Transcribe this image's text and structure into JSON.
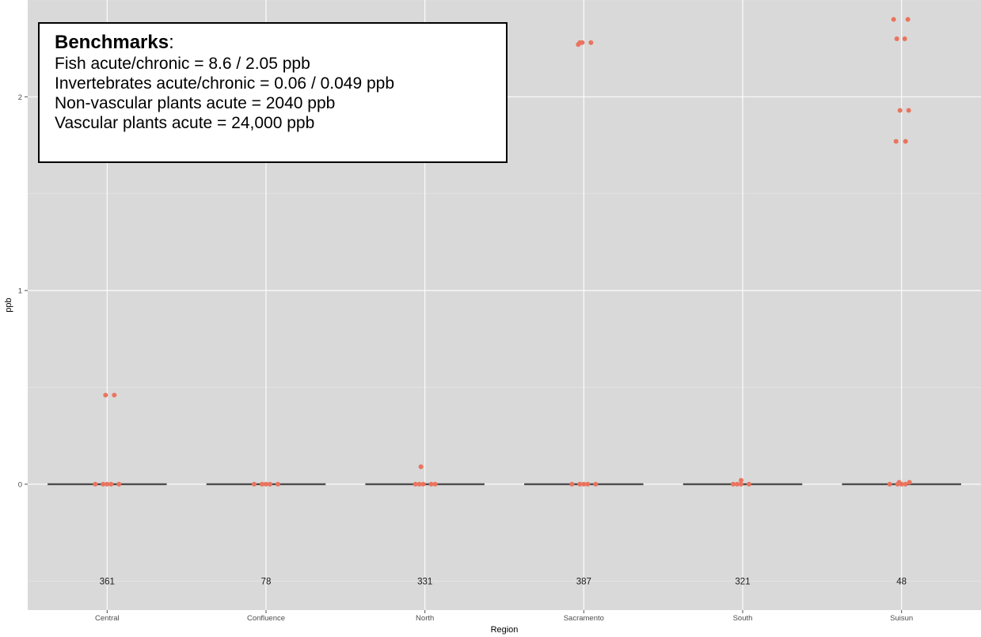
{
  "chart_data": {
    "type": "scatter",
    "xlabel": "Region",
    "ylabel": "ppb",
    "categories": [
      "Central",
      "Confluence",
      "North",
      "Sacramento",
      "South",
      "Suisun"
    ],
    "counts": [
      "361",
      "78",
      "331",
      "387",
      "321",
      "48"
    ],
    "y_ticks": [
      0,
      1,
      2
    ],
    "y_tick_labels": [
      "0",
      "1",
      "2"
    ],
    "ylim": [
      -0.65,
      2.5
    ],
    "grid": true,
    "medians": [
      0,
      0,
      0,
      0,
      0,
      0
    ],
    "count_label_y": -0.5,
    "point_color": "#e9745e",
    "panel_color": "#d9d9d9",
    "points": [
      {
        "category": "Central",
        "y": 0.46
      },
      {
        "category": "Central",
        "y": 0.46
      },
      {
        "category": "Central",
        "y": 0
      },
      {
        "category": "Central",
        "y": 0
      },
      {
        "category": "Central",
        "y": 0
      },
      {
        "category": "Central",
        "y": 0
      },
      {
        "category": "Central",
        "y": 0
      },
      {
        "category": "Confluence",
        "y": 0
      },
      {
        "category": "Confluence",
        "y": 0
      },
      {
        "category": "Confluence",
        "y": 0
      },
      {
        "category": "Confluence",
        "y": 0
      },
      {
        "category": "Confluence",
        "y": 0
      },
      {
        "category": "North",
        "y": 0.09
      },
      {
        "category": "North",
        "y": 0
      },
      {
        "category": "North",
        "y": 0
      },
      {
        "category": "North",
        "y": 0
      },
      {
        "category": "North",
        "y": 0
      },
      {
        "category": "North",
        "y": 0
      },
      {
        "category": "Sacramento",
        "y": 2.28
      },
      {
        "category": "Sacramento",
        "y": 2.28
      },
      {
        "category": "Sacramento",
        "y": 2.27
      },
      {
        "category": "Sacramento",
        "y": 2.28
      },
      {
        "category": "Sacramento",
        "y": 0
      },
      {
        "category": "Sacramento",
        "y": 0
      },
      {
        "category": "Sacramento",
        "y": 0
      },
      {
        "category": "Sacramento",
        "y": 0
      },
      {
        "category": "Sacramento",
        "y": 0
      },
      {
        "category": "South",
        "y": 0.02
      },
      {
        "category": "South",
        "y": 0
      },
      {
        "category": "South",
        "y": 0
      },
      {
        "category": "South",
        "y": 0
      },
      {
        "category": "South",
        "y": 0
      },
      {
        "category": "Suisun",
        "y": 2.4
      },
      {
        "category": "Suisun",
        "y": 2.4
      },
      {
        "category": "Suisun",
        "y": 2.3
      },
      {
        "category": "Suisun",
        "y": 2.3
      },
      {
        "category": "Suisun",
        "y": 1.93
      },
      {
        "category": "Suisun",
        "y": 1.93
      },
      {
        "category": "Suisun",
        "y": 1.77
      },
      {
        "category": "Suisun",
        "y": 1.77
      },
      {
        "category": "Suisun",
        "y": 0.01
      },
      {
        "category": "Suisun",
        "y": 0.01
      },
      {
        "category": "Suisun",
        "y": 0
      },
      {
        "category": "Suisun",
        "y": 0
      },
      {
        "category": "Suisun",
        "y": 0
      },
      {
        "category": "Suisun",
        "y": 0
      }
    ]
  },
  "legend_box": {
    "title_bold": "Benchmarks",
    "title_colon": ":",
    "lines": [
      "Fish acute/chronic = 8.6 / 2.05 ppb",
      "Invertebrates acute/chronic = 0.06 / 0.049 ppb",
      "Non-vascular plants acute = 2040 ppb",
      "Vascular plants acute = 24,000 ppb"
    ]
  }
}
